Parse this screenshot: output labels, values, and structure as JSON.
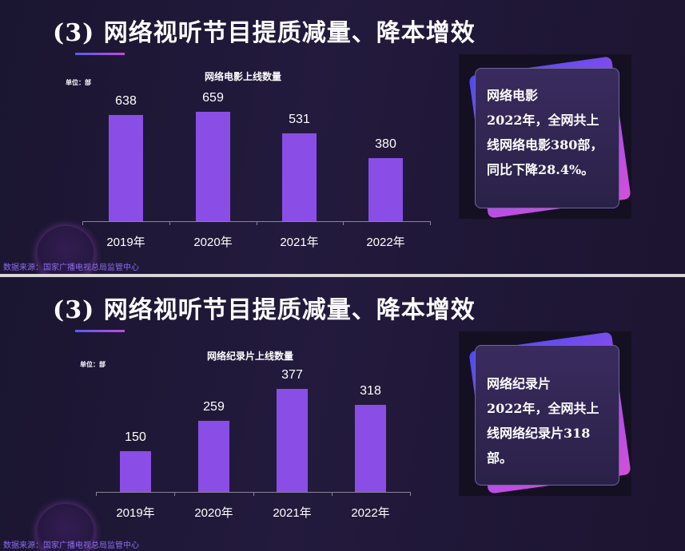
{
  "slides": [
    {
      "title": "(3) 网络视听节目提质减量、降本增效",
      "chart_title": "网络电影上线数量",
      "unit": "单位：部",
      "source": "数据来源：国家广播电视总局监管中心",
      "card": {
        "heading": "网络电影",
        "body": "2022年，全网共上线网络电影380部，同比下降28.4%。"
      }
    },
    {
      "title": "(3) 网络视听节目提质减量、降本增效",
      "chart_title": "网络纪录片上线数量",
      "unit": "单位：部",
      "source": "数据来源：国家广播电视总局监管中心",
      "card": {
        "heading": "网络纪录片",
        "body": "2022年，全网共上线网络纪录片318部。"
      }
    }
  ],
  "chart_data": [
    {
      "type": "bar",
      "title": "网络电影上线数量",
      "categories": [
        "2019年",
        "2020年",
        "2021年",
        "2022年"
      ],
      "values": [
        638,
        659,
        531,
        380
      ],
      "ylabel": "单位：部",
      "color": "#8a4ee6"
    },
    {
      "type": "bar",
      "title": "网络纪录片上线数量",
      "categories": [
        "2019年",
        "2020年",
        "2021年",
        "2022年"
      ],
      "values": [
        150,
        259,
        377,
        318
      ],
      "ylabel": "单位：部",
      "color": "#8a4ee6"
    }
  ]
}
